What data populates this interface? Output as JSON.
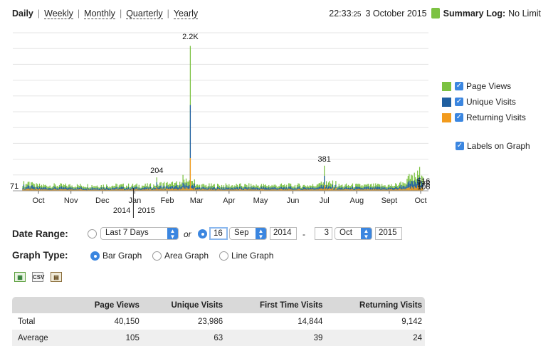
{
  "periods": {
    "daily": "Daily",
    "weekly": "Weekly",
    "monthly": "Monthly",
    "quarterly": "Quarterly",
    "yearly": "Yearly"
  },
  "header": {
    "time_main": "22:33",
    "time_sec": ":25",
    "date": "3 October 2015",
    "log_label": "Summary Log:",
    "log_value": "No Limit",
    "log_color": "#7cc242"
  },
  "legend": {
    "page_views": "Page Views",
    "unique_visits": "Unique Visits",
    "returning_visits": "Returning Visits",
    "labels_on_graph": "Labels on Graph"
  },
  "colors": {
    "page_views": "#7cc242",
    "unique_visits": "#1f5fa0",
    "returning_visits": "#f29b1d",
    "checkbox": "#3b86e0"
  },
  "chart_data": {
    "type": "bar",
    "stacked": true,
    "x_tick_labels": [
      "Oct",
      "Nov",
      "Dec",
      "Jan",
      "Feb",
      "Mar",
      "Apr",
      "May",
      "Jun",
      "Jul",
      "Aug",
      "Sept",
      "Oct"
    ],
    "year_labels": [
      "2014",
      "2015"
    ],
    "annotations": [
      {
        "label": "71",
        "date": "2014-09-16"
      },
      {
        "label": "204",
        "date": "2015-01-22"
      },
      {
        "label": "2.2K",
        "date": "2015-02-23"
      },
      {
        "label": "381",
        "date": "2015-07-01"
      },
      {
        "label": "516",
        "date": "2015-10-01"
      },
      {
        "label": "176",
        "date": "2015-10-02"
      },
      {
        "label": "106",
        "date": "2015-10-03"
      }
    ],
    "peaks": [
      {
        "date": "2015-02-23",
        "page_views": 2200
      },
      {
        "date": "2015-07-01",
        "page_views": 381
      },
      {
        "date": "2015-01-22",
        "page_views": 204
      }
    ],
    "series": [
      {
        "name": "Page Views"
      },
      {
        "name": "Unique Visits"
      },
      {
        "name": "Returning Visits"
      }
    ],
    "ylim": [
      0,
      2400
    ],
    "grid": true
  },
  "form": {
    "date_range_label": "Date Range:",
    "preset": "Last 7 Days",
    "or": "or",
    "from_day": "16",
    "from_month": "Sep",
    "from_year": "2014",
    "dash": "-",
    "to_day": "3",
    "to_month": "Oct",
    "to_year": "2015",
    "graph_type_label": "Graph Type:",
    "bar_graph": "Bar Graph",
    "area_graph": "Area Graph",
    "line_graph": "Line Graph"
  },
  "export_icons": {
    "excel": "excel-icon",
    "csv": "CSV",
    "pdf": "pdf-icon"
  },
  "table": {
    "headers": [
      "",
      "Page Views",
      "Unique Visits",
      "First Time Visits",
      "Returning Visits"
    ],
    "rows": [
      [
        "Total",
        "40,150",
        "23,986",
        "14,844",
        "9,142"
      ],
      [
        "Average",
        "105",
        "63",
        "39",
        "24"
      ]
    ]
  }
}
